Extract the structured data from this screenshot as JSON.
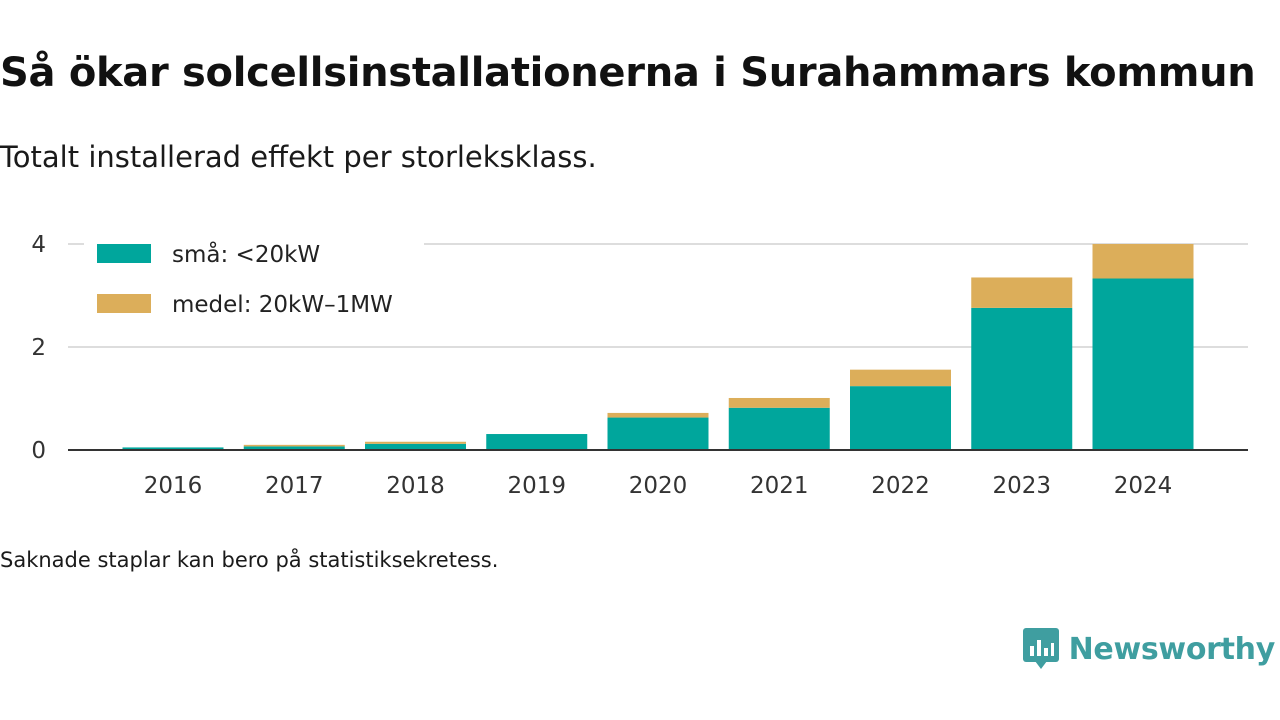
{
  "title": "Så ökar solcellsinstallationerna i Surahammars kommun",
  "subtitle": "Totalt installerad effekt per storleksklass.",
  "footnote": "Saknade staplar kan bero på statistiksekretess.",
  "brand": {
    "name": "Newsworthy",
    "icon": "newsworthy-logo-icon"
  },
  "colors": {
    "small": "#00a69c",
    "medium": "#dcae5a",
    "grid": "#dddddd",
    "axis": "#333333"
  },
  "chart_data": {
    "type": "bar",
    "stacked": true,
    "categories": [
      "2016",
      "2017",
      "2018",
      "2019",
      "2020",
      "2021",
      "2022",
      "2023",
      "2024"
    ],
    "series": [
      {
        "name": "små: <20kW",
        "color": "#00a69c",
        "values": [
          0.05,
          0.07,
          0.12,
          0.31,
          0.63,
          0.82,
          1.24,
          2.76,
          3.33
        ]
      },
      {
        "name": "medel: 20kW–1MW",
        "color": "#dcae5a",
        "values": [
          0.0,
          0.03,
          0.04,
          0.0,
          0.09,
          0.19,
          0.32,
          0.59,
          0.67
        ]
      }
    ],
    "yticks": [
      "0",
      "2",
      "4"
    ],
    "ylim": [
      0,
      4
    ],
    "grid": true,
    "legend_position": "top-left",
    "xlabel": "",
    "ylabel": ""
  }
}
